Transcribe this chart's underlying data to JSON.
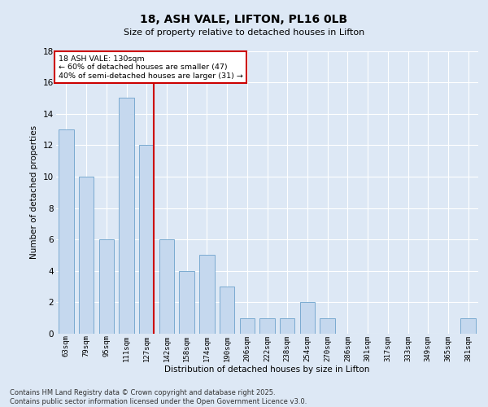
{
  "title1": "18, ASH VALE, LIFTON, PL16 0LB",
  "title2": "Size of property relative to detached houses in Lifton",
  "xlabel": "Distribution of detached houses by size in Lifton",
  "ylabel": "Number of detached properties",
  "categories": [
    "63sqm",
    "79sqm",
    "95sqm",
    "111sqm",
    "127sqm",
    "142sqm",
    "158sqm",
    "174sqm",
    "190sqm",
    "206sqm",
    "222sqm",
    "238sqm",
    "254sqm",
    "270sqm",
    "286sqm",
    "301sqm",
    "317sqm",
    "333sqm",
    "349sqm",
    "365sqm",
    "381sqm"
  ],
  "values": [
    13,
    10,
    6,
    15,
    12,
    6,
    4,
    5,
    3,
    1,
    1,
    1,
    2,
    1,
    0,
    0,
    0,
    0,
    0,
    0,
    1
  ],
  "bar_color": "#c5d8ee",
  "bar_edgecolor": "#7aaad0",
  "redline_index": 4,
  "annotation_line1": "18 ASH VALE: 130sqm",
  "annotation_line2": "← 60% of detached houses are smaller (47)",
  "annotation_line3": "40% of semi-detached houses are larger (31) →",
  "annotation_box_facecolor": "#ffffff",
  "annotation_box_edgecolor": "#cc0000",
  "ylim": [
    0,
    18
  ],
  "yticks": [
    0,
    2,
    4,
    6,
    8,
    10,
    12,
    14,
    16,
    18
  ],
  "background_color": "#dde8f5",
  "grid_color": "#ffffff",
  "footnote": "Contains HM Land Registry data © Crown copyright and database right 2025.\nContains public sector information licensed under the Open Government Licence v3.0."
}
